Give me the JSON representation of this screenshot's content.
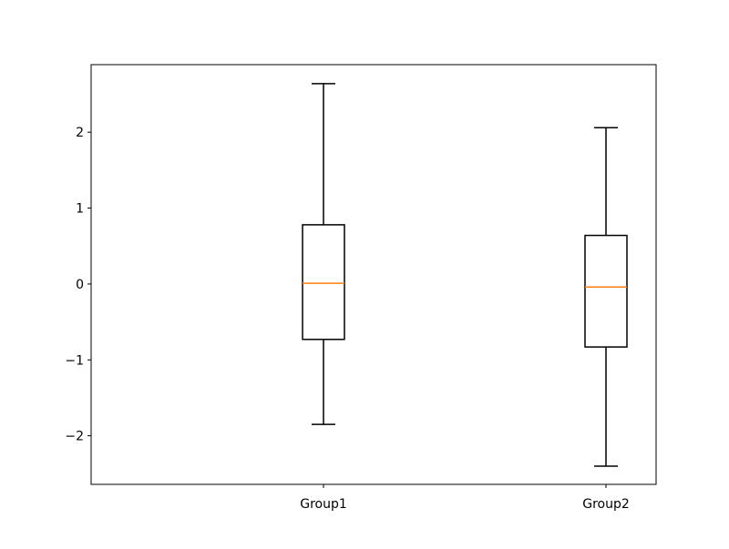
{
  "chart_data": {
    "type": "box",
    "title": "",
    "xlabel": "",
    "ylabel": "",
    "categories": [
      "Group1",
      "Group2"
    ],
    "boxes": [
      {
        "category": "Group1",
        "whisker_low": -1.85,
        "q1": -0.73,
        "median": 0.01,
        "q3": 0.78,
        "whisker_high": 2.64
      },
      {
        "category": "Group2",
        "whisker_low": -2.4,
        "q1": -0.83,
        "median": -0.04,
        "q3": 0.64,
        "whisker_high": 2.06
      }
    ],
    "ylim": [
      -2.64,
      2.89
    ],
    "yticks": [
      -2,
      -1,
      0,
      1,
      2
    ],
    "ytick_labels": [
      "−2",
      "−1",
      "0",
      "1",
      "2"
    ],
    "grid": false,
    "colors": {
      "box": "#000000",
      "median": "#ff7f0e"
    }
  }
}
